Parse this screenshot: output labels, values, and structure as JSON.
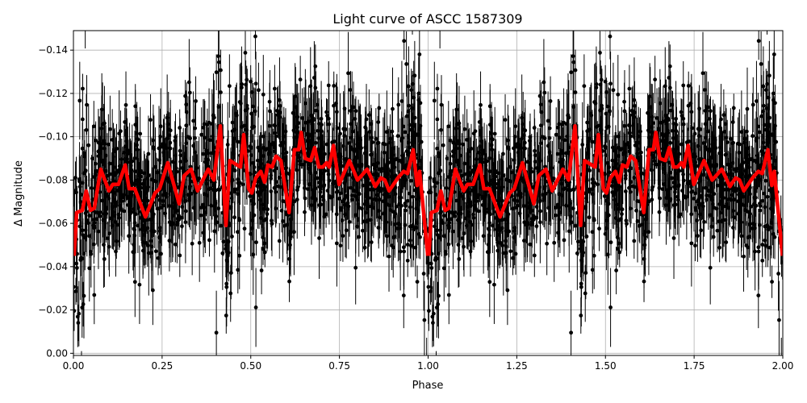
{
  "chart_data": {
    "type": "scatter",
    "title": "Light curve of ASCC 1587309",
    "xlabel": "Phase",
    "ylabel": "Δ Magnitude",
    "xlim": [
      0.0,
      2.0
    ],
    "ylim": [
      0.001,
      -0.149
    ],
    "y_inverted": true,
    "grid": true,
    "x_ticks": [
      "0.00",
      "0.25",
      "0.50",
      "0.75",
      "1.00",
      "1.25",
      "1.50",
      "1.75",
      "2.00"
    ],
    "x_tick_values": [
      0,
      0.25,
      0.5,
      0.75,
      1.0,
      1.25,
      1.5,
      1.75,
      2.0
    ],
    "y_ticks": [
      "−0.14",
      "−0.12",
      "−0.10",
      "−0.08",
      "−0.06",
      "−0.04",
      "−0.02",
      "0.00"
    ],
    "y_tick_values": [
      -0.14,
      -0.12,
      -0.1,
      -0.08,
      -0.06,
      -0.04,
      -0.02,
      0.0
    ],
    "period_repeat": 1.0,
    "series": [
      {
        "kind": "data points with error bars",
        "color": "#000000"
      },
      {
        "kind": "smoothed model line",
        "color": "#ff0000",
        "x": [
          0.002,
          0.009,
          0.025,
          0.036,
          0.048,
          0.059,
          0.077,
          0.1,
          0.111,
          0.127,
          0.146,
          0.157,
          0.173,
          0.203,
          0.23,
          0.243,
          0.266,
          0.298,
          0.312,
          0.332,
          0.35,
          0.38,
          0.396,
          0.414,
          0.43,
          0.441,
          0.471,
          0.48,
          0.494,
          0.503,
          0.514,
          0.528,
          0.539,
          0.548,
          0.56,
          0.571,
          0.585,
          0.608,
          0.623,
          0.635,
          0.642,
          0.653,
          0.669,
          0.68,
          0.692,
          0.703,
          0.714,
          0.721,
          0.733,
          0.749,
          0.778,
          0.801,
          0.812,
          0.828,
          0.851,
          0.867,
          0.878,
          0.89,
          0.915,
          0.931,
          0.942,
          0.958,
          0.969,
          0.976,
          0.999
        ],
        "y": [
          -0.045,
          -0.065,
          -0.066,
          -0.075,
          -0.066,
          -0.067,
          -0.085,
          -0.075,
          -0.078,
          -0.078,
          -0.087,
          -0.076,
          -0.076,
          -0.063,
          -0.074,
          -0.076,
          -0.088,
          -0.069,
          -0.082,
          -0.085,
          -0.075,
          -0.085,
          -0.08,
          -0.105,
          -0.059,
          -0.089,
          -0.086,
          -0.101,
          -0.076,
          -0.074,
          -0.081,
          -0.084,
          -0.079,
          -0.087,
          -0.086,
          -0.091,
          -0.089,
          -0.065,
          -0.094,
          -0.094,
          -0.102,
          -0.09,
          -0.089,
          -0.095,
          -0.086,
          -0.086,
          -0.088,
          -0.086,
          -0.096,
          -0.078,
          -0.089,
          -0.08,
          -0.082,
          -0.085,
          -0.077,
          -0.081,
          -0.08,
          -0.075,
          -0.081,
          -0.084,
          -0.083,
          -0.094,
          -0.0775,
          -0.084,
          -0.045
        ]
      }
    ]
  }
}
